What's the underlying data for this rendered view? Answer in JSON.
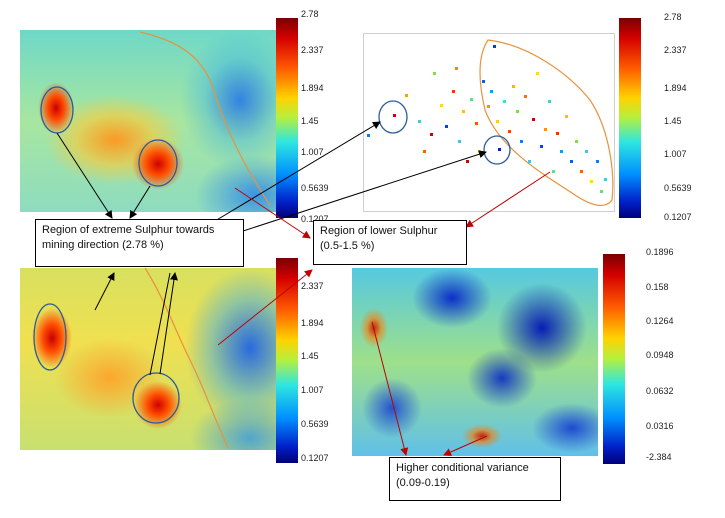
{
  "panels": {
    "top_left": {
      "colorbar_ticks": [
        "2.78",
        "2.337",
        "1.894",
        "1.45",
        "1.007",
        "0.5639",
        "0.1207"
      ]
    },
    "top_right": {
      "colorbar_ticks": [
        "2.78",
        "2.337",
        "1.894",
        "1.45",
        "1.007",
        "0.5639",
        "0.1207"
      ]
    },
    "bottom_left": {
      "colorbar_ticks": [
        "2.337",
        "1.894",
        "1.45",
        "1.007",
        "0.5639",
        "0.1207"
      ]
    },
    "bottom_right": {
      "colorbar_ticks": [
        "0.1896",
        "0.158",
        "0.1264",
        "0.0948",
        "0.0632",
        "0.0316",
        "-2.384"
      ]
    }
  },
  "callouts": {
    "extreme_sulphur": "Region of extreme Sulphur towards mining direction (2.78 %)",
    "lower_sulphur_line1": "Region of lower Sulphur",
    "lower_sulphur_line2": "(0.5-1.5 %)",
    "variance": "Higher conditional variance (0.09-0.19)"
  },
  "colors": {
    "arrow_black": "#000000",
    "arrow_red": "#c00000",
    "region_blue": "#2a5c9a",
    "boundary_orange": "#e8923c"
  }
}
